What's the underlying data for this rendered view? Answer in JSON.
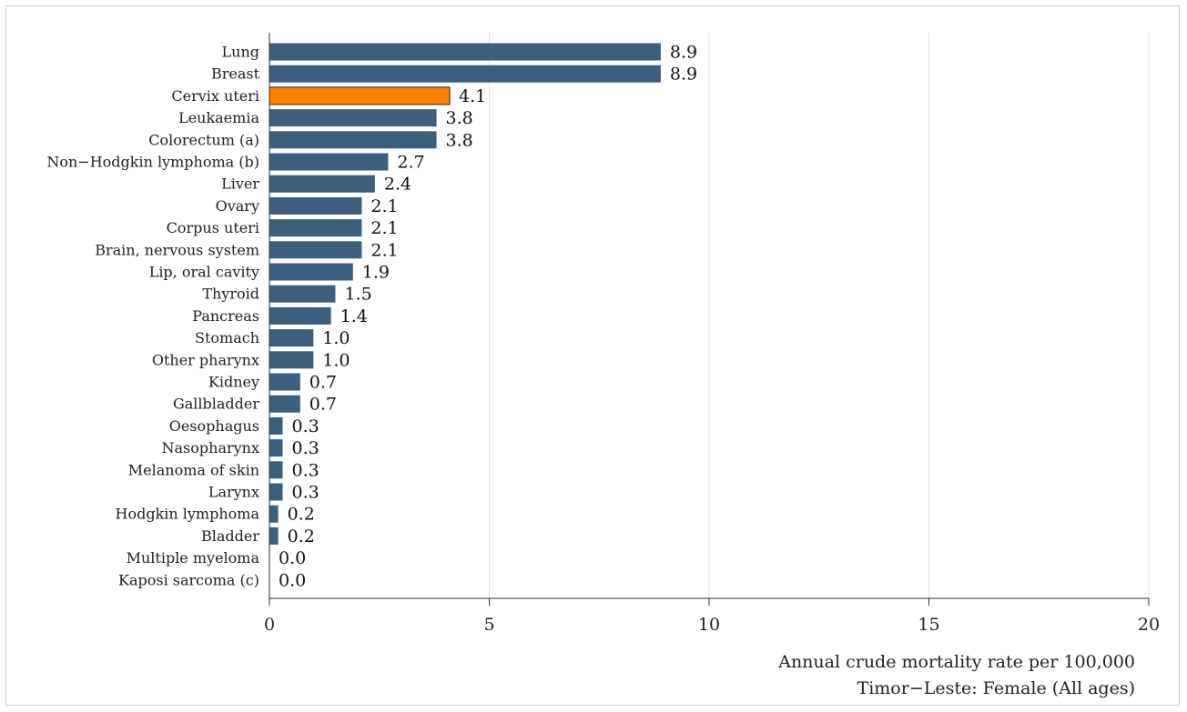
{
  "chart_data": {
    "type": "bar",
    "orientation": "horizontal",
    "categories": [
      "Lung",
      "Breast",
      "Cervix uteri",
      "Leukaemia",
      "Colorectum (a)",
      "Non−Hodgkin lymphoma (b)",
      "Liver",
      "Ovary",
      "Corpus uteri",
      "Brain, nervous system",
      "Lip, oral cavity",
      "Thyroid",
      "Pancreas",
      "Stomach",
      "Other pharynx",
      "Kidney",
      "Gallbladder",
      "Oesophagus",
      "Nasopharynx",
      "Melanoma of skin",
      "Larynx",
      "Hodgkin lymphoma",
      "Bladder",
      "Multiple myeloma",
      "Kaposi sarcoma (c)"
    ],
    "values": [
      8.9,
      8.9,
      4.1,
      3.8,
      3.8,
      2.7,
      2.4,
      2.1,
      2.1,
      2.1,
      1.9,
      1.5,
      1.4,
      1.0,
      1.0,
      0.7,
      0.7,
      0.3,
      0.3,
      0.3,
      0.3,
      0.2,
      0.2,
      0.0,
      0.0
    ],
    "value_labels": [
      "8.9",
      "8.9",
      "4.1",
      "3.8",
      "3.8",
      "2.7",
      "2.4",
      "2.1",
      "2.1",
      "2.1",
      "1.9",
      "1.5",
      "1.4",
      "1.0",
      "1.0",
      "0.7",
      "0.7",
      "0.3",
      "0.3",
      "0.3",
      "0.3",
      "0.2",
      "0.2",
      "0.0",
      "0.0"
    ],
    "highlight_category": "Cervix uteri",
    "xlim": [
      0,
      20
    ],
    "xticks": [
      "0",
      "5",
      "10",
      "15",
      "20"
    ],
    "xlabel": "Annual crude mortality rate per 100,000",
    "subtitle": "Timor−Leste: Female (All ages)",
    "grid": "vertical",
    "colors": {
      "bar": "#3d5f7d",
      "highlight": "#ff8000",
      "grid": "#e3e3e3"
    }
  }
}
